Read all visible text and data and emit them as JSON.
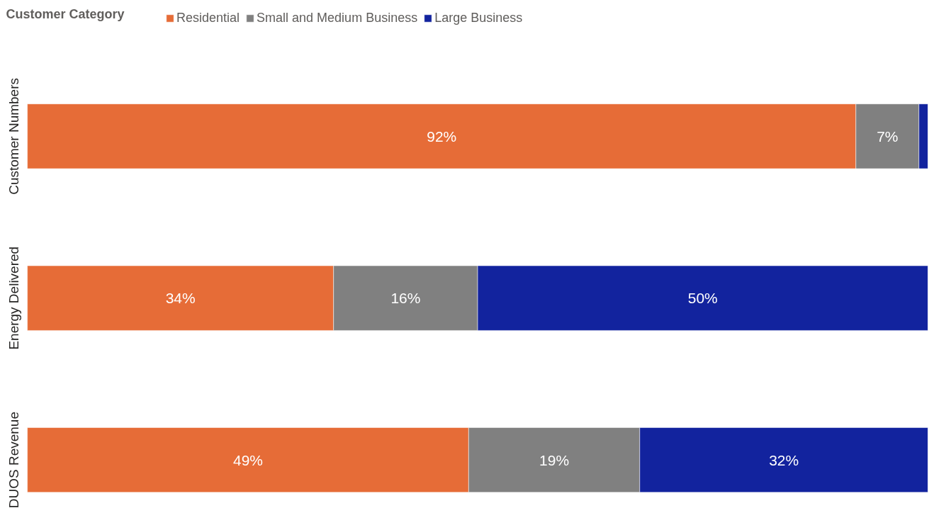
{
  "chart_data": {
    "type": "bar",
    "orientation": "horizontal",
    "stacked": true,
    "legend_title": "Customer Category",
    "legend": "top left",
    "grid": false,
    "categories": [
      "Customer Numbers",
      "Energy Delivered",
      "DUOS Revenue"
    ],
    "series": [
      {
        "name": "Residential",
        "color": "#e66c37",
        "values": [
          92,
          34,
          49
        ],
        "value_labels": [
          "92%",
          "34%",
          "49%"
        ]
      },
      {
        "name": "Small and Medium Business",
        "color": "#808080",
        "values": [
          7,
          16,
          19
        ],
        "value_labels": [
          "7%",
          "16%",
          "19%"
        ]
      },
      {
        "name": "Large Business",
        "color": "#12239e",
        "values": [
          1,
          50,
          32
        ],
        "value_labels": [
          null,
          "50%",
          "32%"
        ]
      }
    ]
  }
}
